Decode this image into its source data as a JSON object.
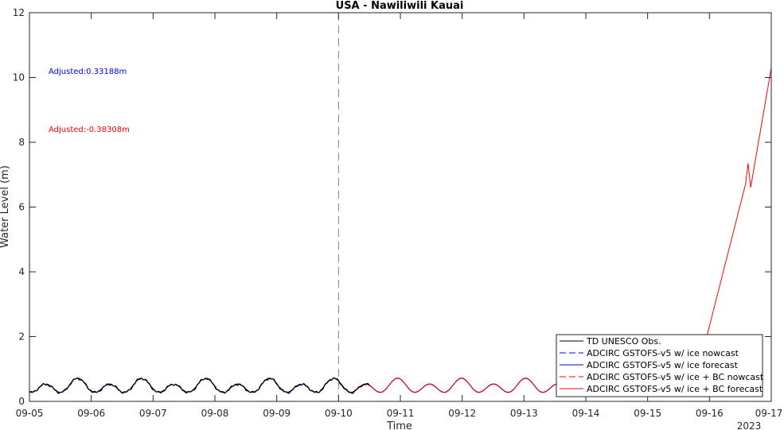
{
  "chart_data": {
    "type": "line",
    "title": "USA - Nawiliwili Kauai",
    "xlabel": "Time",
    "ylabel": "Water Level (m)",
    "year_label": "2023",
    "x_ticks": [
      "09-05",
      "09-06",
      "09-07",
      "09-08",
      "09-09",
      "09-10",
      "09-11",
      "09-12",
      "09-13",
      "09-14",
      "09-15",
      "09-16",
      "09-17"
    ],
    "xlim": [
      "2023-09-05",
      "2023-09-17"
    ],
    "ylim": [
      0,
      12
    ],
    "y_ticks": [
      "0",
      "2",
      "4",
      "6",
      "8",
      "10",
      "12"
    ],
    "nowcast_forecast_boundary": "2023-09-10",
    "grid": false,
    "legend_position": "bottom-right",
    "annotations": [
      {
        "text": "Adjusted:0.33188m",
        "color": "#0000ff"
      },
      {
        "text": "Adjusted:-0.38308m",
        "color": "#ff0000"
      }
    ],
    "series": [
      {
        "name": "TD UNESCO Obs.",
        "color": "#000000",
        "style": "solid",
        "x_range": [
          "2023-09-05",
          "2023-09-10 12:00"
        ]
      },
      {
        "name": "ADCIRC GSTOFS-v5 w/ ice nowcast",
        "color": "#0000ff",
        "style": "dashed",
        "x_range": [
          "2023-09-05",
          "2023-09-10"
        ]
      },
      {
        "name": "ADCIRC GSTOFS-v5 w/ ice forecast",
        "color": "#0000ff",
        "style": "solid",
        "x_range": [
          "2023-09-10",
          "2023-09-15 06:00"
        ]
      },
      {
        "name": "ADCIRC GSTOFS-v5 w/ ice + BC nowcast",
        "color": "#ff0000",
        "style": "dashed",
        "x_range": [
          "2023-09-05",
          "2023-09-10"
        ]
      },
      {
        "name": "ADCIRC GSTOFS-v5 w/ ice + BC forecast",
        "color": "#ff0000",
        "style": "solid",
        "x_range": [
          "2023-09-10",
          "2023-09-17"
        ],
        "late_rise": [
          {
            "x": "2023-09-15 18:00",
            "y": 0.45
          },
          {
            "x": "2023-09-16 14:00",
            "y": 6.7
          },
          {
            "x": "2023-09-16 15:00",
            "y": 7.35
          },
          {
            "x": "2023-09-16 16:00",
            "y": 6.6
          },
          {
            "x": "2023-09-17 00:00",
            "y": 10.3
          }
        ]
      }
    ]
  }
}
